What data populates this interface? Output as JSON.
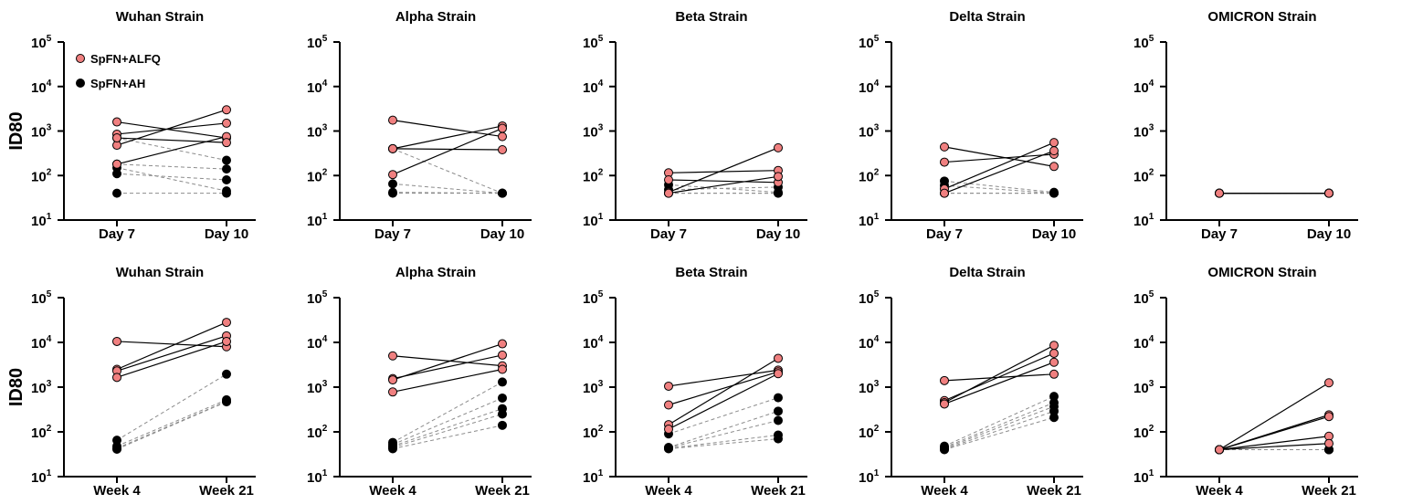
{
  "legend": [
    {
      "label": "SpFN+ALFQ",
      "color": "#f08080"
    },
    {
      "label": "SpFN+AH",
      "color": "#000000"
    }
  ],
  "ylabel": "ID80",
  "y_ticks": [
    {
      "base": "10",
      "exp": "1"
    },
    {
      "base": "10",
      "exp": "2"
    },
    {
      "base": "10",
      "exp": "3"
    },
    {
      "base": "10",
      "exp": "4"
    },
    {
      "base": "10",
      "exp": "5"
    }
  ],
  "chart_data": [
    {
      "type": "line",
      "title": "Wuhan Strain",
      "yscale": "log",
      "ylim": [
        10,
        100000
      ],
      "categories": [
        "Day 7",
        "Day 10"
      ],
      "series": [
        {
          "name": "SpFN+ALFQ",
          "pairs": [
            [
              1600,
              700
            ],
            [
              850,
              1500
            ],
            [
              480,
              3000
            ],
            [
              180,
              750
            ],
            [
              700,
              550
            ]
          ]
        },
        {
          "name": "SpFN+AH",
          "pairs": [
            [
              700,
              220
            ],
            [
              180,
              140
            ],
            [
              150,
              45
            ],
            [
              110,
              80
            ],
            [
              40,
              40
            ]
          ]
        }
      ]
    },
    {
      "type": "line",
      "title": "Alpha Strain",
      "yscale": "log",
      "ylim": [
        10,
        100000
      ],
      "categories": [
        "Day 7",
        "Day 10"
      ],
      "series": [
        {
          "name": "SpFN+ALFQ",
          "pairs": [
            [
              1750,
              750
            ],
            [
              400,
              1300
            ],
            [
              105,
              1150
            ],
            [
              400,
              380
            ]
          ]
        },
        {
          "name": "SpFN+AH",
          "pairs": [
            [
              400,
              40
            ],
            [
              65,
              40
            ],
            [
              42,
              40
            ],
            [
              40,
              40
            ]
          ]
        }
      ]
    },
    {
      "type": "line",
      "title": "Beta Strain",
      "yscale": "log",
      "ylim": [
        10,
        100000
      ],
      "categories": [
        "Day 7",
        "Day 10"
      ],
      "series": [
        {
          "name": "SpFN+ALFQ",
          "pairs": [
            [
              115,
              130
            ],
            [
              80,
              70
            ],
            [
              42,
              420
            ],
            [
              40,
              95
            ]
          ]
        },
        {
          "name": "SpFN+AH",
          "pairs": [
            [
              62,
              42
            ],
            [
              48,
              55
            ],
            [
              40,
              40
            ],
            [
              40,
              40
            ]
          ]
        }
      ]
    },
    {
      "type": "line",
      "title": "Delta Strain",
      "yscale": "log",
      "ylim": [
        10,
        100000
      ],
      "categories": [
        "Day 7",
        "Day 10"
      ],
      "series": [
        {
          "name": "SpFN+ALFQ",
          "pairs": [
            [
              440,
              160
            ],
            [
              200,
              300
            ],
            [
              50,
              550
            ],
            [
              40,
              360
            ]
          ]
        },
        {
          "name": "SpFN+AH",
          "pairs": [
            [
              75,
              42
            ],
            [
              60,
              40
            ],
            [
              40,
              40
            ],
            [
              40,
              40
            ]
          ]
        }
      ]
    },
    {
      "type": "line",
      "title": "OMICRON Strain",
      "yscale": "log",
      "ylim": [
        10,
        100000
      ],
      "categories": [
        "Day 7",
        "Day 10"
      ],
      "series": [
        {
          "name": "SpFN+ALFQ",
          "pairs": [
            [
              40,
              40
            ],
            [
              40,
              40
            ],
            [
              40,
              40
            ],
            [
              40,
              40
            ]
          ]
        },
        {
          "name": "SpFN+AH",
          "pairs": [
            [
              40,
              40
            ],
            [
              40,
              40
            ],
            [
              40,
              40
            ],
            [
              40,
              40
            ]
          ]
        }
      ]
    },
    {
      "type": "line",
      "title": "Wuhan Strain",
      "yscale": "log",
      "ylim": [
        10,
        100000
      ],
      "categories": [
        "Week 4",
        "Week 21"
      ],
      "series": [
        {
          "name": "SpFN+ALFQ",
          "pairs": [
            [
              10500,
              8000
            ],
            [
              2500,
              28000
            ],
            [
              2300,
              14000
            ],
            [
              1650,
              10500
            ]
          ]
        },
        {
          "name": "SpFN+AH",
          "pairs": [
            [
              65,
              1950
            ],
            [
              48,
              520
            ],
            [
              43,
              480
            ],
            [
              41,
              470
            ]
          ]
        }
      ]
    },
    {
      "type": "line",
      "title": "Alpha Strain",
      "yscale": "log",
      "ylim": [
        10,
        100000
      ],
      "categories": [
        "Week 4",
        "Week 21"
      ],
      "series": [
        {
          "name": "SpFN+ALFQ",
          "pairs": [
            [
              5000,
              3000
            ],
            [
              1550,
              5200
            ],
            [
              1450,
              9300
            ],
            [
              780,
              2500
            ]
          ]
        },
        {
          "name": "SpFN+AH",
          "pairs": [
            [
              58,
              1300
            ],
            [
              52,
              570
            ],
            [
              48,
              330
            ],
            [
              45,
              250
            ],
            [
              42,
              140
            ]
          ]
        }
      ]
    },
    {
      "type": "line",
      "title": "Beta Strain",
      "yscale": "log",
      "ylim": [
        10,
        100000
      ],
      "categories": [
        "Week 4",
        "Week 21"
      ],
      "series": [
        {
          "name": "SpFN+ALFQ",
          "pairs": [
            [
              1050,
              2400
            ],
            [
              400,
              2200
            ],
            [
              145,
              4400
            ],
            [
              115,
              2000
            ]
          ]
        },
        {
          "name": "SpFN+AH",
          "pairs": [
            [
              90,
              580
            ],
            [
              45,
              290
            ],
            [
              44,
              180
            ],
            [
              43,
              85
            ],
            [
              42,
              70
            ]
          ]
        }
      ]
    },
    {
      "type": "line",
      "title": "Delta Strain",
      "yscale": "log",
      "ylim": [
        10,
        100000
      ],
      "categories": [
        "Week 4",
        "Week 21"
      ],
      "series": [
        {
          "name": "SpFN+ALFQ",
          "pairs": [
            [
              1400,
              1950
            ],
            [
              500,
              5700
            ],
            [
              450,
              8600
            ],
            [
              420,
              3600
            ]
          ]
        },
        {
          "name": "SpFN+AH",
          "pairs": [
            [
              48,
              620
            ],
            [
              45,
              450
            ],
            [
              43,
              370
            ],
            [
              41,
              290
            ],
            [
              40,
              210
            ]
          ]
        }
      ]
    },
    {
      "type": "line",
      "title": "OMICRON Strain",
      "yscale": "log",
      "ylim": [
        10,
        100000
      ],
      "categories": [
        "Week 4",
        "Week 21"
      ],
      "series": [
        {
          "name": "SpFN+ALFQ",
          "pairs": [
            [
              40,
              1250
            ],
            [
              40,
              240
            ],
            [
              40,
              220
            ],
            [
              40,
              80
            ],
            [
              40,
              55
            ]
          ]
        },
        {
          "name": "SpFN+AH",
          "pairs": [
            [
              40,
              40
            ],
            [
              40,
              40
            ],
            [
              40,
              40
            ],
            [
              40,
              40
            ]
          ]
        }
      ]
    }
  ]
}
